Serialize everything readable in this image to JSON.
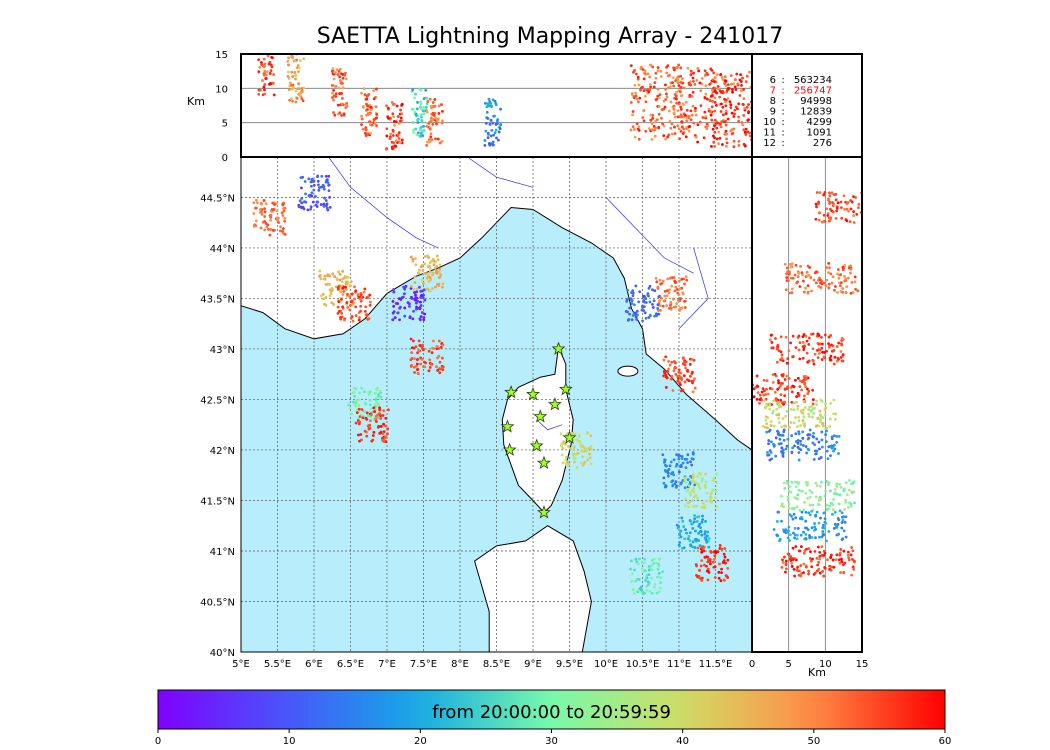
{
  "title": "SAETTA Lightning Mapping Array - 241017",
  "colors": {
    "sea": "#b8eefc",
    "land": "#ffffff",
    "river": "#2d2dff",
    "station": "#9cff2a",
    "station_edge": "#2a3a00",
    "grid": "#555555"
  },
  "chart_data": [
    {
      "type": "scatter",
      "panel": "top-altitude-vs-longitude",
      "ylabel": "Km",
      "yticks": [
        "0",
        "5",
        "10",
        "15"
      ],
      "ylim": [
        0,
        15
      ],
      "xlim": [
        5,
        12
      ],
      "clusters": [
        {
          "lon": 5.35,
          "alt": 12.5,
          "age_min": 55
        },
        {
          "lon": 5.75,
          "alt": 11.5,
          "age_min": 48
        },
        {
          "lon": 6.35,
          "alt": 9.5,
          "age_min": 52
        },
        {
          "lon": 6.75,
          "alt": 6.5,
          "age_min": 53
        },
        {
          "lon": 7.1,
          "alt": 4.5,
          "age_min": 55
        },
        {
          "lon": 7.45,
          "alt": 6.5,
          "age_min": 25
        },
        {
          "lon": 7.65,
          "alt": 5.0,
          "age_min": 52
        },
        {
          "lon": 8.45,
          "alt": 5.0,
          "age_min": 15
        },
        {
          "lon": 10.7,
          "alt": 8.0,
          "age_min": 52
        },
        {
          "lon": 11.3,
          "alt": 7.5,
          "age_min": 54
        },
        {
          "lon": 11.8,
          "alt": 7.0,
          "age_min": 56
        }
      ]
    },
    {
      "type": "table",
      "panel": "top-right-source-counts",
      "rows": [
        {
          "label": "6",
          "count": "563234",
          "color": "#000000"
        },
        {
          "label": "7",
          "count": "256747",
          "color": "#ff0000"
        },
        {
          "label": "8",
          "count": "94998",
          "color": "#000000"
        },
        {
          "label": "9",
          "count": "12839",
          "color": "#000000"
        },
        {
          "label": "10",
          "count": "4299",
          "color": "#000000"
        },
        {
          "label": "11",
          "count": "1091",
          "color": "#000000"
        },
        {
          "label": "12",
          "count": "276",
          "color": "#000000"
        }
      ]
    },
    {
      "type": "scatter",
      "panel": "main-map",
      "xticks": [
        "5°E",
        "5.5°E",
        "6°E",
        "6.5°E",
        "7°E",
        "7.5°E",
        "8°E",
        "8.5°E",
        "9°E",
        "9.5°E",
        "10°E",
        "10.5°E",
        "11°E",
        "11.5°E"
      ],
      "yticks": [
        "40°N",
        "40.5°N",
        "41°N",
        "41.5°N",
        "42°N",
        "42.5°N",
        "43°N",
        "43.5°N",
        "44°N",
        "44.5°N"
      ],
      "xlim": [
        5,
        12
      ],
      "ylim": [
        40,
        44.9
      ],
      "stations": [
        {
          "lon": 9.35,
          "lat": 43.0
        },
        {
          "lon": 8.7,
          "lat": 42.57
        },
        {
          "lon": 9.0,
          "lat": 42.55
        },
        {
          "lon": 9.45,
          "lat": 42.6
        },
        {
          "lon": 9.3,
          "lat": 42.45
        },
        {
          "lon": 9.1,
          "lat": 42.33
        },
        {
          "lon": 8.65,
          "lat": 42.23
        },
        {
          "lon": 9.5,
          "lat": 42.12
        },
        {
          "lon": 9.05,
          "lat": 42.04
        },
        {
          "lon": 8.68,
          "lat": 42.0
        },
        {
          "lon": 9.15,
          "lat": 41.87
        },
        {
          "lon": 9.15,
          "lat": 41.38
        }
      ],
      "clusters": [
        {
          "lon": 5.4,
          "lat": 44.3,
          "age_min": 52
        },
        {
          "lon": 6.0,
          "lat": 44.55,
          "age_min": 10
        },
        {
          "lon": 6.3,
          "lat": 43.6,
          "age_min": 45
        },
        {
          "lon": 6.55,
          "lat": 43.45,
          "age_min": 55
        },
        {
          "lon": 7.3,
          "lat": 43.45,
          "age_min": 5
        },
        {
          "lon": 7.55,
          "lat": 43.75,
          "age_min": 45
        },
        {
          "lon": 7.55,
          "lat": 42.93,
          "age_min": 55
        },
        {
          "lon": 6.7,
          "lat": 42.45,
          "age_min": 30
        },
        {
          "lon": 6.8,
          "lat": 42.25,
          "age_min": 56
        },
        {
          "lon": 10.9,
          "lat": 43.55,
          "age_min": 52
        },
        {
          "lon": 10.5,
          "lat": 43.45,
          "age_min": 12
        },
        {
          "lon": 11.0,
          "lat": 42.75,
          "age_min": 55
        },
        {
          "lon": 11.0,
          "lat": 41.8,
          "age_min": 15
        },
        {
          "lon": 11.3,
          "lat": 41.6,
          "age_min": 38
        },
        {
          "lon": 11.2,
          "lat": 41.2,
          "age_min": 20
        },
        {
          "lon": 11.45,
          "lat": 40.88,
          "age_min": 57
        },
        {
          "lon": 10.55,
          "lat": 40.75,
          "age_min": 28
        },
        {
          "lon": 9.6,
          "lat": 42.0,
          "age_min": 40
        }
      ]
    },
    {
      "type": "scatter",
      "panel": "right-latitude-vs-altitude",
      "xlabel": "Km",
      "xticks": [
        "0",
        "5",
        "10",
        "15"
      ],
      "xlim": [
        0,
        15
      ],
      "ylim": [
        40,
        44.9
      ],
      "clusters": [
        {
          "alt": 13.5,
          "lat": 44.4,
          "age_min": 55
        },
        {
          "alt": 9.5,
          "lat": 43.7,
          "age_min": 52
        },
        {
          "alt": 7.5,
          "lat": 43.0,
          "age_min": 56
        },
        {
          "alt": 3.5,
          "lat": 42.6,
          "age_min": 56
        },
        {
          "alt": 6.5,
          "lat": 42.35,
          "age_min": 40
        },
        {
          "alt": 7.0,
          "lat": 42.05,
          "age_min": 15
        },
        {
          "alt": 9.0,
          "lat": 41.55,
          "age_min": 32
        },
        {
          "alt": 8.0,
          "lat": 41.25,
          "age_min": 18
        },
        {
          "alt": 9.0,
          "lat": 40.9,
          "age_min": 56
        }
      ]
    },
    {
      "type": "colorbar",
      "panel": "time-colorbar",
      "label": "from 20:00:00 to 20:59:59",
      "ticks": [
        "0",
        "10",
        "20",
        "30",
        "40",
        "50",
        "60"
      ],
      "range": [
        0,
        60
      ]
    }
  ]
}
